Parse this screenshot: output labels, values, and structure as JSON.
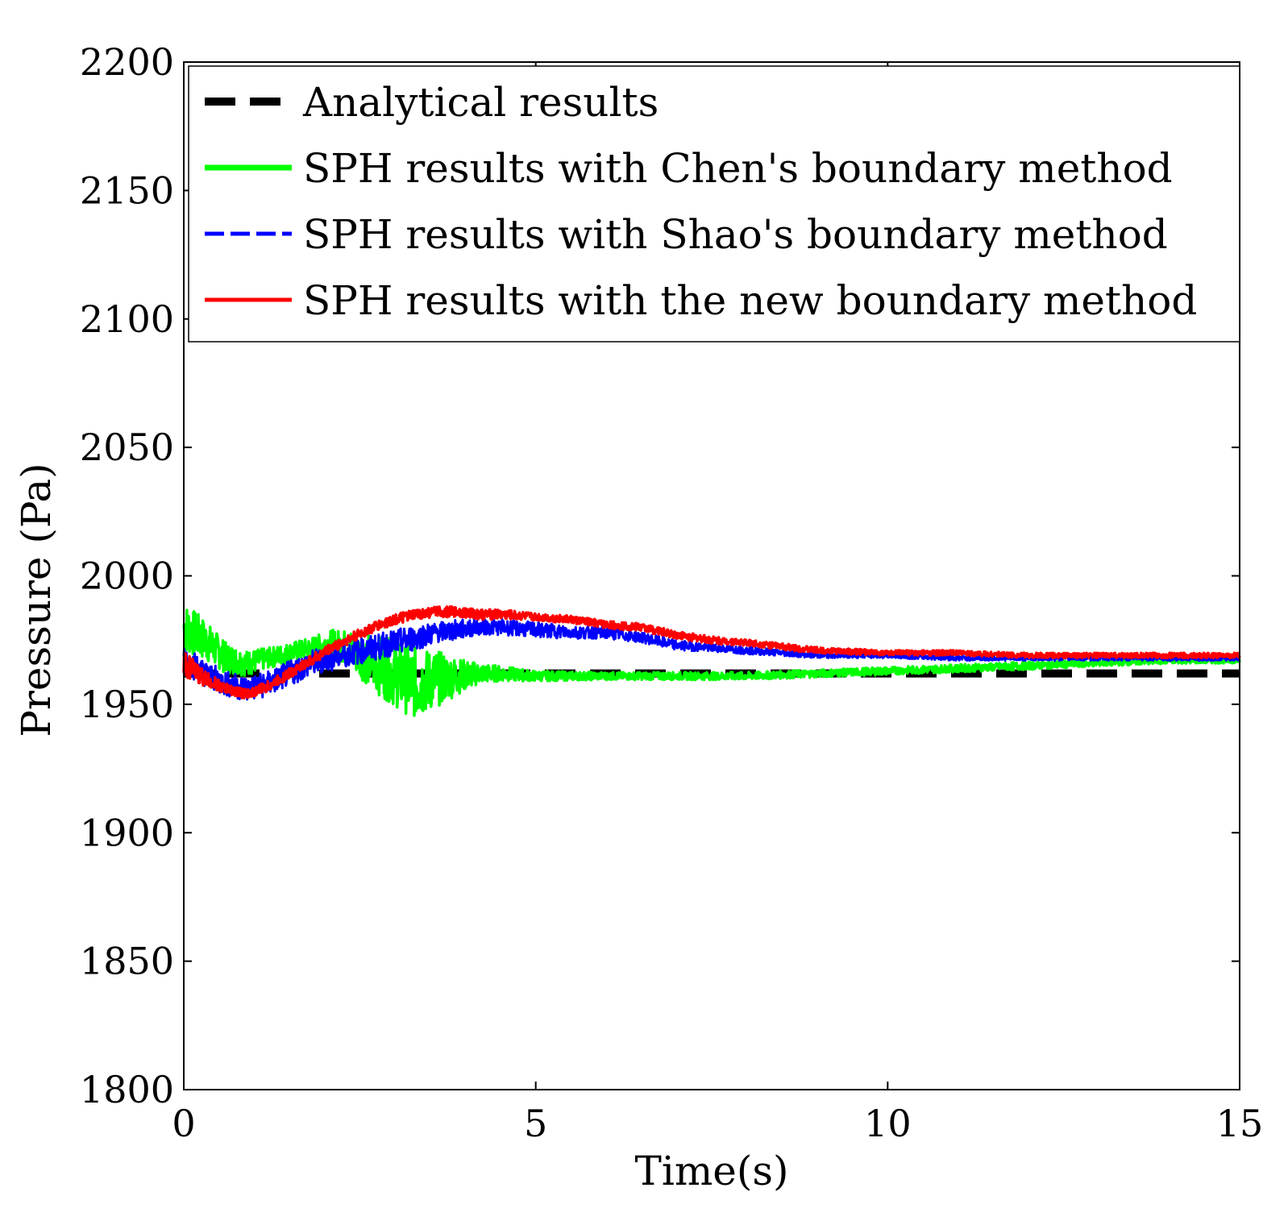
{
  "chart_data": {
    "type": "line",
    "title": "",
    "xlabel": "Time(s)",
    "ylabel": "Pressure (Pa)",
    "xlim": [
      0,
      15
    ],
    "ylim": [
      1800,
      2200
    ],
    "xticks": [
      0,
      5,
      10,
      15
    ],
    "yticks": [
      1800,
      1850,
      1900,
      1950,
      2000,
      2050,
      2100,
      2150,
      2200
    ],
    "grid": false,
    "legend_position": "top",
    "series": [
      {
        "name": "Analytical results",
        "color": "#000000",
        "style": "dashed",
        "x": [
          0,
          15
        ],
        "y": [
          1962,
          1962
        ]
      },
      {
        "name": "SPH results with Chen's boundary method",
        "color": "#00ff00",
        "style": "solid",
        "x": [
          0,
          0.3,
          0.6,
          0.9,
          1.2,
          1.5,
          1.8,
          2.1,
          2.4,
          2.7,
          3.0,
          3.3,
          3.6,
          3.9,
          4.2,
          4.5,
          5.0,
          6.0,
          7.0,
          8.0,
          9.0,
          10.0,
          11.0,
          12.0,
          13.0,
          14.0,
          15.0
        ],
        "y": [
          1980,
          1975,
          1968,
          1966,
          1968,
          1970,
          1972,
          1974,
          1971,
          1966,
          1962,
          1958,
          1960,
          1961,
          1962,
          1962,
          1961,
          1961,
          1961,
          1961,
          1962,
          1963,
          1964,
          1965,
          1966,
          1967,
          1967
        ],
        "amp": [
          10,
          8,
          6,
          5,
          4,
          4,
          4,
          5,
          8,
          11,
          13,
          14,
          11,
          7,
          4,
          3,
          2,
          1.5,
          1.5,
          1.5,
          1.5,
          1.5,
          1.5,
          1.5,
          1.2,
          1.2,
          1
        ]
      },
      {
        "name": "SPH results with Shao's boundary method",
        "color": "#0000ff",
        "style": "dashed",
        "x": [
          0,
          0.3,
          0.6,
          0.9,
          1.2,
          1.5,
          1.8,
          2.1,
          2.4,
          2.7,
          3.0,
          3.3,
          3.6,
          3.9,
          4.2,
          4.5,
          5.0,
          5.5,
          6.0,
          6.5,
          7.0,
          7.5,
          8.0,
          9.0,
          10.0,
          11.0,
          12.0,
          13.0,
          14.0,
          15.0
        ],
        "y": [
          1968,
          1962,
          1958,
          1956,
          1958,
          1962,
          1966,
          1968,
          1970,
          1972,
          1974,
          1976,
          1978,
          1979,
          1980,
          1980,
          1979,
          1978,
          1978,
          1976,
          1973,
          1972,
          1971,
          1969,
          1969,
          1968,
          1968,
          1968,
          1968,
          1968
        ],
        "amp": [
          6,
          5,
          5,
          5,
          5,
          5,
          5,
          5,
          5,
          5,
          5,
          5,
          4,
          4,
          3,
          3,
          3,
          2.5,
          2.5,
          2,
          2,
          1.5,
          1.5,
          1,
          1,
          1,
          1,
          1,
          1,
          1
        ]
      },
      {
        "name": "SPH results with the new boundary method",
        "color": "#ff0000",
        "style": "solid",
        "x": [
          0,
          0.3,
          0.6,
          0.9,
          1.2,
          1.5,
          1.8,
          2.1,
          2.4,
          2.7,
          3.0,
          3.3,
          3.6,
          3.9,
          4.2,
          4.5,
          5.0,
          5.5,
          6.0,
          6.5,
          7.0,
          7.5,
          8.0,
          9.0,
          10.0,
          11.0,
          12.0,
          13.0,
          14.0,
          15.0
        ],
        "y": [
          1966,
          1960,
          1956,
          1954,
          1957,
          1962,
          1967,
          1972,
          1976,
          1980,
          1983,
          1985,
          1986,
          1986,
          1985,
          1985,
          1984,
          1983,
          1981,
          1980,
          1977,
          1975,
          1974,
          1971,
          1970,
          1970,
          1969,
          1969,
          1969,
          1969
        ],
        "amp": [
          5,
          3,
          2,
          2,
          2,
          2,
          2,
          2,
          2,
          2,
          2,
          2,
          2,
          2,
          2,
          2,
          1.5,
          1.5,
          1.5,
          1.5,
          1.5,
          1.5,
          1.2,
          1.2,
          1,
          1,
          1,
          1,
          1,
          1
        ]
      }
    ]
  }
}
